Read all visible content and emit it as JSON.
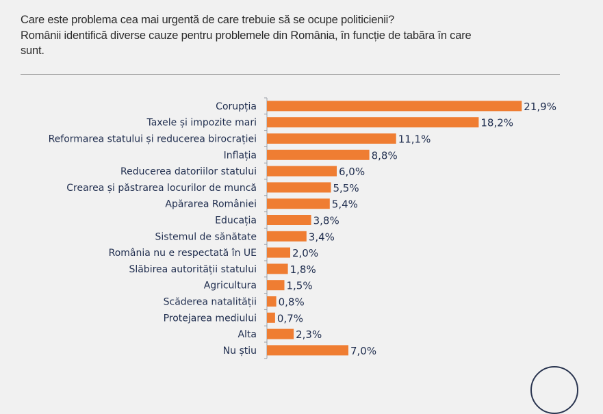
{
  "header": {
    "title_lines": [
      "Care este problema cea mai urgentă de care trebuie să se ocupe politicienii?",
      "Românii identifică diverse cauze pentru problemele din România, în funcție de tabăra în care",
      "sunt."
    ]
  },
  "colors": {
    "bar": "#ef7d32",
    "text": "#1f2d4e",
    "background": "#f1f1f1"
  },
  "chart_data": {
    "type": "bar",
    "orientation": "horizontal",
    "title": "Care este problema cea mai urgentă de care trebuie să se ocupe politicienii?",
    "xlabel": "",
    "ylabel": "",
    "xlim": [
      0,
      22
    ],
    "grid": false,
    "categories": [
      "Corupția",
      "Taxele și impozite mari",
      "Reformarea statului și reducerea birocrației",
      "Inflația",
      "Reducerea datoriilor statului",
      "Crearea și păstrarea locurilor de muncă",
      "Apărarea României",
      "Educația",
      "Sistemul de sănătate",
      "România nu e respectată în UE",
      "Slăbirea autorității statului",
      "Agricultura",
      "Scăderea natalității",
      "Protejarea mediului",
      "Alta",
      "Nu știu"
    ],
    "values": [
      21.9,
      18.2,
      11.1,
      8.8,
      6.0,
      5.5,
      5.4,
      3.8,
      3.4,
      2.0,
      1.8,
      1.5,
      0.8,
      0.7,
      2.3,
      7.0
    ],
    "labels": [
      "21,9%",
      "18,2%",
      "11,1%",
      "8,8%",
      "6,0%",
      "5,5%",
      "5,4%",
      "3,8%",
      "3,4%",
      "2,0%",
      "1,8%",
      "1,5%",
      "0,8%",
      "0,7%",
      "2,3%",
      "7,0%"
    ]
  }
}
